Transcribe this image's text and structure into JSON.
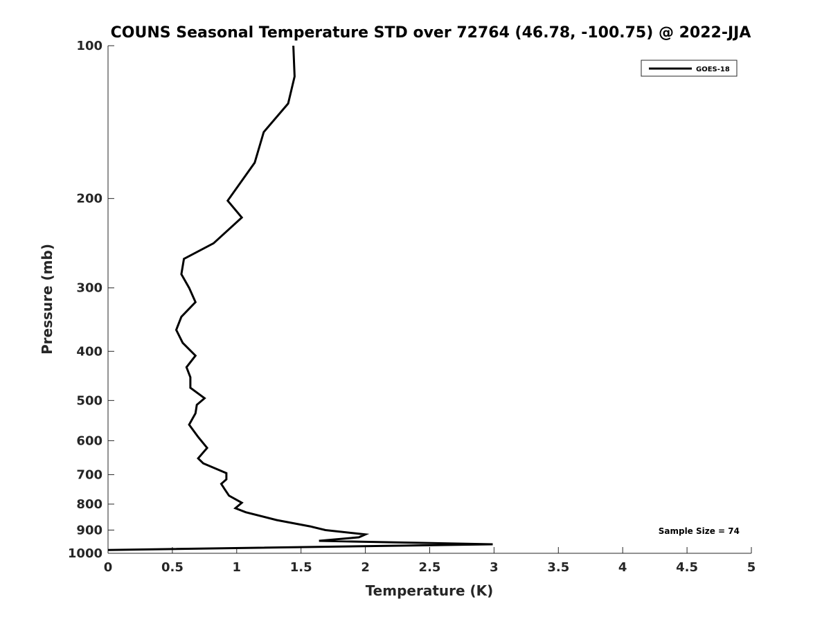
{
  "chart_data": {
    "type": "line",
    "title": "COUNS Seasonal Temperature STD over 72764 (46.78, -100.75) @ 2022-JJA",
    "xlabel": "Temperature (K)",
    "ylabel": "Pressure (mb)",
    "xlim": [
      0,
      5
    ],
    "ylim": [
      100,
      1000
    ],
    "yscale": "log",
    "yreversed": true,
    "xticks": [
      0,
      0.5,
      1,
      1.5,
      2,
      2.5,
      3,
      3.5,
      4,
      4.5,
      5
    ],
    "xtick_labels": [
      "0",
      "0.5",
      "1",
      "1.5",
      "2",
      "2.5",
      "3",
      "3.5",
      "4",
      "4.5",
      "5"
    ],
    "yticks": [
      100,
      200,
      300,
      400,
      500,
      600,
      700,
      800,
      900,
      1000
    ],
    "ytick_labels": [
      "100",
      "200",
      "300",
      "400",
      "500",
      "600",
      "700",
      "800",
      "900",
      "1000"
    ],
    "grid": false,
    "legend": {
      "position": "top-right",
      "entries": [
        "GOES-18"
      ]
    },
    "annotation": "Sample Size = 74",
    "series": [
      {
        "name": "GOES-18",
        "color": "#000000",
        "x": [
          1.44,
          1.45,
          1.4,
          1.21,
          1.14,
          0.93,
          1.04,
          0.82,
          0.59,
          0.57,
          0.63,
          0.68,
          0.57,
          0.53,
          0.58,
          0.68,
          0.61,
          0.64,
          0.64,
          0.75,
          0.69,
          0.68,
          0.63,
          0.7,
          0.77,
          0.7,
          0.74,
          0.92,
          0.92,
          0.88,
          0.91,
          0.94,
          1.04,
          0.99,
          1.07,
          1.31,
          1.57,
          1.69,
          2.0,
          1.95,
          1.64,
          2.99,
          0.0
        ],
        "y": [
          100,
          115,
          130,
          148,
          170,
          202,
          218,
          245,
          263,
          282,
          300,
          320,
          342,
          363,
          385,
          408,
          430,
          450,
          472,
          495,
          510,
          530,
          558,
          590,
          620,
          650,
          665,
          695,
          715,
          730,
          750,
          770,
          795,
          815,
          830,
          860,
          885,
          900,
          918,
          930,
          945,
          960,
          985
        ]
      }
    ]
  }
}
